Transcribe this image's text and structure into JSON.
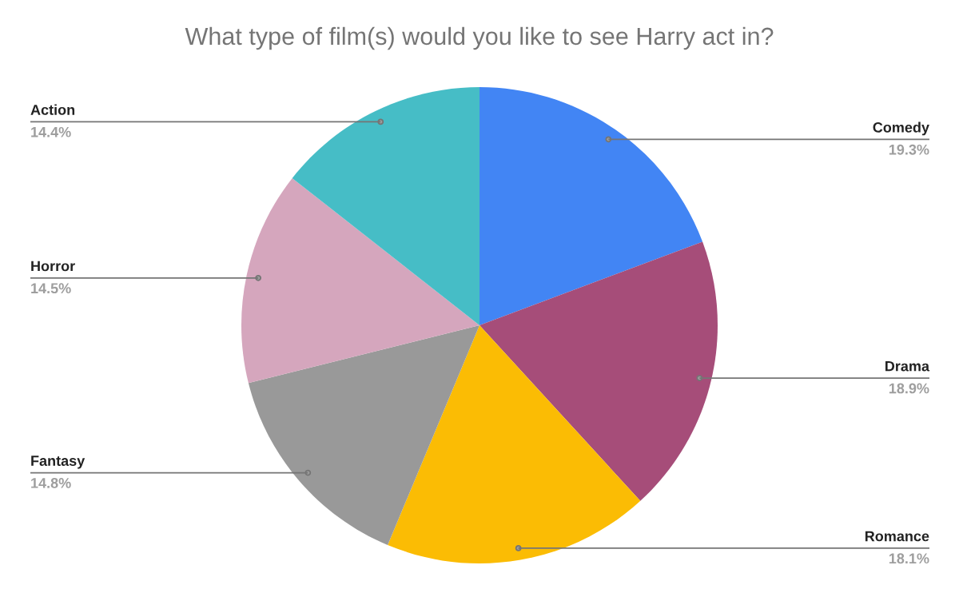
{
  "chart_data": {
    "type": "pie",
    "title": "What type of film(s) would you like to see Harry act in?",
    "categories": [
      "Comedy",
      "Drama",
      "Romance",
      "Fantasy",
      "Horror",
      "Action"
    ],
    "values": [
      19.3,
      18.9,
      18.1,
      14.8,
      14.5,
      14.4
    ],
    "colors": [
      "#4285f4",
      "#a64d79",
      "#fbbc04",
      "#999999",
      "#d5a6bd",
      "#46bdc6"
    ],
    "value_labels": [
      "19.3%",
      "18.9%",
      "18.1%",
      "14.8%",
      "14.5%",
      "14.4%"
    ],
    "legend": false
  }
}
